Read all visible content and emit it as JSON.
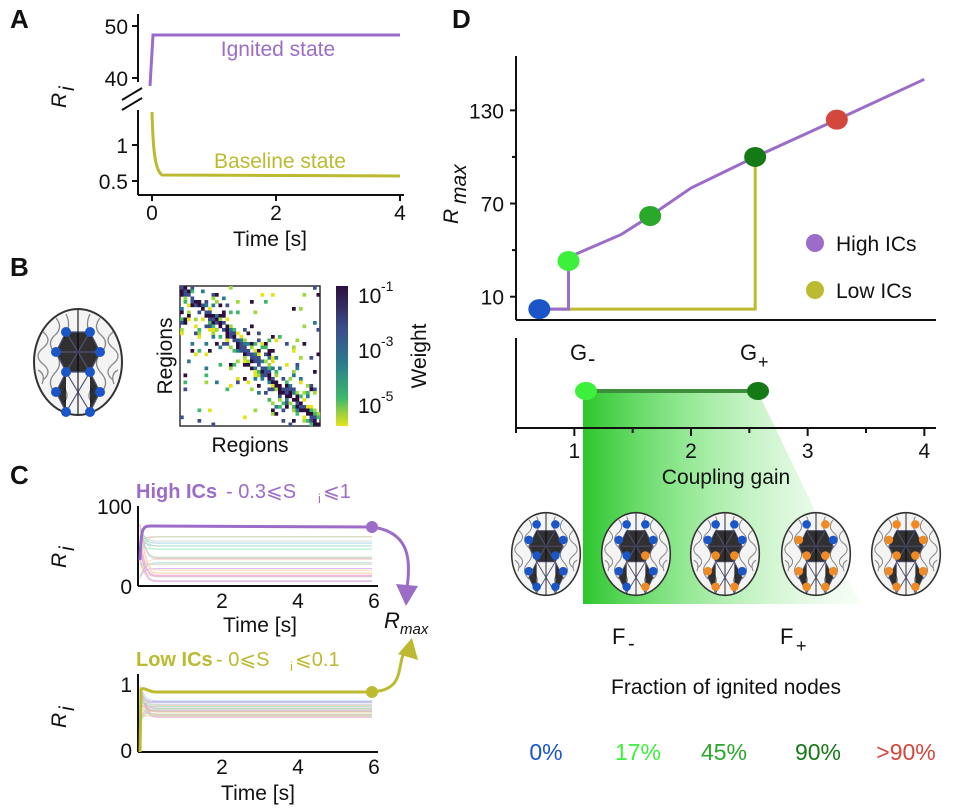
{
  "colors": {
    "purple": "#9b6cc8",
    "olive": "#bcba30",
    "blue": "#1a56c8",
    "lightgreen": "#3cf03c",
    "green": "#2aa82a",
    "darkgreen": "#157a15",
    "red": "#d4473c",
    "orange": "#f08a24",
    "heat_dark": "#2e0f3e",
    "heat_mid": "#2a7b8e",
    "heat_light": "#e6e31a"
  },
  "panels": {
    "a": "A",
    "b": "B",
    "c": "C",
    "d": "D"
  },
  "panel_a": {
    "ylabel": "R",
    "ylabel_sub": "i",
    "xlabel": "Time [s]",
    "xticks": [
      "0",
      "2",
      "4"
    ],
    "yticks_top": [
      "50",
      "40"
    ],
    "yticks_bottom": [
      "1",
      "0.5"
    ],
    "ignited_label": "Ignited state",
    "baseline_label": "Baseline state"
  },
  "panel_b": {
    "xlabel": "Regions",
    "ylabel": "Regions",
    "colorbar_label": "Weight",
    "colorbar_ticks": [
      {
        "base": "10",
        "exp": "-1"
      },
      {
        "base": "10",
        "exp": "-3"
      },
      {
        "base": "10",
        "exp": "-5"
      }
    ]
  },
  "panel_c": {
    "high_title": "High ICs",
    "high_range": " - 0.3⩽S",
    "high_range_sub": "i",
    "high_range_end": "⩽1",
    "low_title": "Low ICs",
    "low_range": " - 0⩽S",
    "low_range_sub": "i",
    "low_range_end": "⩽0.1",
    "ylabel": "R",
    "ylabel_sub": "i",
    "xlabel": "Time [s]",
    "top_yticks": [
      "100",
      "0"
    ],
    "bottom_yticks": [
      "1",
      "0"
    ],
    "xticks": [
      "2",
      "4",
      "6"
    ],
    "rmax_label": "R",
    "rmax_sub": "max"
  },
  "panel_d": {
    "ylabel": "R",
    "ylabel_sub": "max",
    "yticks": [
      "130",
      "70",
      "10"
    ],
    "xticks": [
      "1",
      "2",
      "3",
      "4"
    ],
    "xlabel": "Coupling gain",
    "legend": [
      {
        "label": "High ICs",
        "color": "#9b6cc8"
      },
      {
        "label": "Low  ICs",
        "color": "#bcba30"
      }
    ],
    "g_minus": "G",
    "g_minus_sub": "-",
    "g_plus": "G",
    "g_plus_sub": "+",
    "f_minus": "F",
    "f_minus_sub": "-",
    "f_plus": "F",
    "f_plus_sub": "+",
    "fraction_title": "Fraction of ignited nodes",
    "percentages": [
      {
        "label": "0%",
        "color": "#1a56c8"
      },
      {
        "label": "17%",
        "color": "#3cf03c"
      },
      {
        "label": "45%",
        "color": "#2aa82a"
      },
      {
        "label": "90%",
        "color": "#157a15"
      },
      {
        "label": ">90%",
        "color": "#d4473c"
      }
    ]
  },
  "chart_data": [
    {
      "type": "line",
      "title": "",
      "xlabel": "Time [s]",
      "ylabel": "Ri",
      "series": [
        {
          "name": "Ignited state",
          "x": [
            0,
            0.02,
            0.05,
            4
          ],
          "values": [
            40,
            48,
            48,
            48
          ]
        },
        {
          "name": "Baseline state",
          "x": [
            0,
            0.02,
            0.1,
            0.3,
            4
          ],
          "values": [
            1.5,
            0.8,
            0.6,
            0.55,
            0.55
          ]
        }
      ],
      "xlim": [
        0,
        4
      ]
    },
    {
      "type": "line",
      "xlabel": "Coupling gain",
      "ylabel": "Rmax",
      "series": [
        {
          "name": "High ICs",
          "x": [
            0.7,
            0.95,
            0.95,
            1.0,
            1.4,
            1.65,
            2.0,
            2.55,
            3.25,
            4.0
          ],
          "values": [
            2,
            2,
            33,
            37,
            50,
            62,
            80,
            100,
            124,
            150
          ]
        },
        {
          "name": "Low  ICs",
          "x": [
            0.7,
            2.55,
            2.55
          ],
          "values": [
            2,
            2,
            100
          ]
        }
      ],
      "points": [
        {
          "x": 0.7,
          "y": 2,
          "color": "#1a56c8"
        },
        {
          "x": 0.95,
          "y": 33,
          "color": "#3cf03c"
        },
        {
          "x": 1.65,
          "y": 62,
          "color": "#2aa82a"
        },
        {
          "x": 2.55,
          "y": 100,
          "color": "#157a15"
        },
        {
          "x": 3.25,
          "y": 124,
          "color": "#d4473c"
        }
      ],
      "xlim": [
        0.5,
        4.1
      ],
      "ylim": [
        -5,
        165
      ]
    }
  ]
}
